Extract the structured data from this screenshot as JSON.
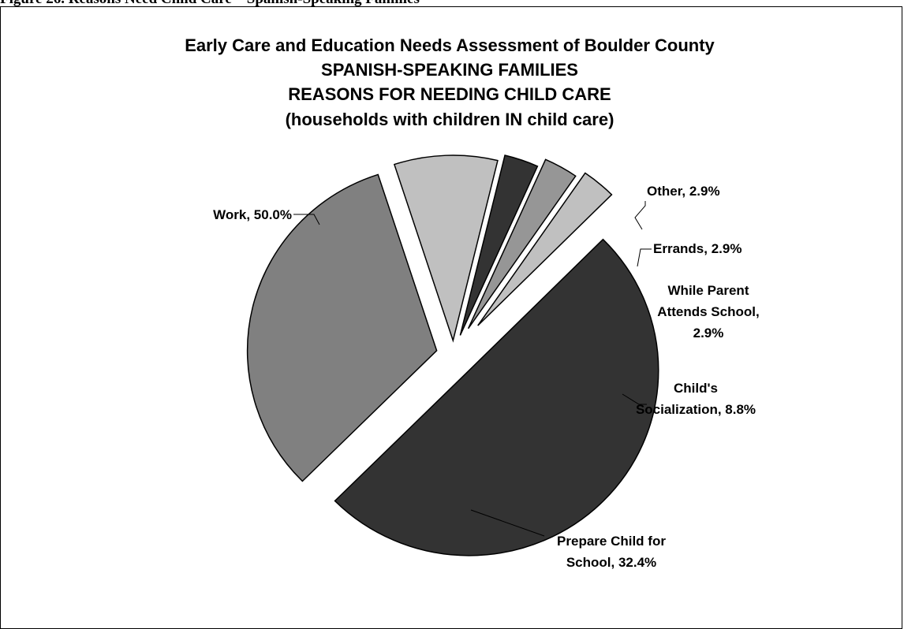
{
  "figure_caption": "Figure 26.  Reasons Need Child Care – Spanish-Speaking Families",
  "chart_data": {
    "type": "pie",
    "title_lines": [
      "Early Care and Education Needs Assessment of Boulder County",
      "SPANISH-SPEAKING FAMILIES",
      "REASONS FOR NEEDING CHILD CARE",
      "(households with children IN child care)"
    ],
    "slices": [
      {
        "label_lines": [
          "Work, 50.0%"
        ],
        "category": "Work",
        "value": 50.0,
        "color": "#333333"
      },
      {
        "label_lines": [
          "Prepare Child for",
          "School, 32.4%"
        ],
        "category": "Prepare Child for School",
        "value": 32.4,
        "color": "#808080"
      },
      {
        "label_lines": [
          "Child's",
          "Socialization, 8.8%"
        ],
        "category": "Child's Socialization",
        "value": 8.8,
        "color": "#c0c0c0"
      },
      {
        "label_lines": [
          "While Parent",
          "Attends School,",
          "2.9%"
        ],
        "category": "While Parent Attends School",
        "value": 2.9,
        "color": "#333333"
      },
      {
        "label_lines": [
          "Errands, 2.9%"
        ],
        "category": "Errands",
        "value": 2.9,
        "color": "#969696"
      },
      {
        "label_lines": [
          "Other, 2.9%"
        ],
        "category": "Other",
        "value": 2.9,
        "color": "#c0c0c0"
      }
    ],
    "legend": "none",
    "exploded": true
  }
}
